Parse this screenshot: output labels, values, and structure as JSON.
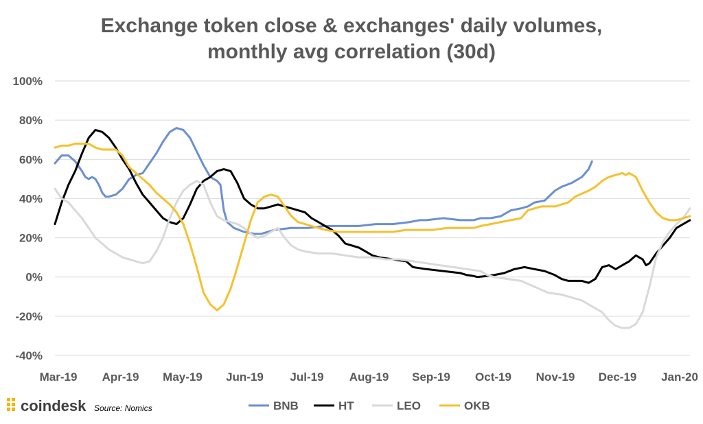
{
  "chart_data": {
    "type": "line",
    "title_lines": [
      "Exchange token close & exchanges' daily volumes,",
      "monthly avg correlation (30d)"
    ],
    "xlabel": "",
    "ylabel": "",
    "x_ticks": [
      "Mar-19",
      "Apr-19",
      "May-19",
      "Jun-19",
      "Jul-19",
      "Aug-19",
      "Sep-19",
      "Oct-19",
      "Nov-19",
      "Dec-19",
      "Jan-20"
    ],
    "ylim": [
      -40,
      100
    ],
    "y_ticks": [
      -40,
      -20,
      0,
      20,
      40,
      60,
      80,
      100
    ],
    "y_tick_labels": [
      "-40%",
      "-20%",
      "0%",
      "20%",
      "40%",
      "60%",
      "80%",
      "100%"
    ],
    "grid": "horizontal",
    "legend_position": "bottom",
    "series": [
      {
        "name": "BNB",
        "color": "#6a8fd1",
        "points": [
          [
            0,
            58
          ],
          [
            0.2,
            62
          ],
          [
            0.4,
            62
          ],
          [
            0.6,
            59
          ],
          [
            0.8,
            54
          ],
          [
            0.9,
            51
          ],
          [
            1.0,
            50
          ],
          [
            1.1,
            51
          ],
          [
            1.2,
            50
          ],
          [
            1.3,
            47
          ],
          [
            1.4,
            43
          ],
          [
            1.5,
            41
          ],
          [
            1.6,
            41
          ],
          [
            1.8,
            42
          ],
          [
            2.0,
            45
          ],
          [
            2.2,
            50
          ],
          [
            2.4,
            52
          ],
          [
            2.6,
            53
          ],
          [
            2.8,
            58
          ],
          [
            3.0,
            63
          ],
          [
            3.2,
            69
          ],
          [
            3.4,
            74
          ],
          [
            3.6,
            76
          ],
          [
            3.8,
            75
          ],
          [
            4.0,
            71
          ],
          [
            4.2,
            64
          ],
          [
            4.4,
            57
          ],
          [
            4.6,
            51
          ],
          [
            4.8,
            49
          ],
          [
            4.9,
            47
          ],
          [
            5.0,
            34
          ],
          [
            5.1,
            28
          ],
          [
            5.3,
            25
          ],
          [
            5.6,
            23
          ],
          [
            5.9,
            22
          ],
          [
            6.1,
            22
          ],
          [
            6.3,
            23
          ],
          [
            6.5,
            24
          ],
          [
            7.0,
            25
          ],
          [
            7.5,
            25
          ],
          [
            8.0,
            26
          ],
          [
            8.5,
            26
          ],
          [
            9.0,
            26
          ],
          [
            9.5,
            27
          ],
          [
            10.0,
            27
          ],
          [
            10.5,
            28
          ],
          [
            10.8,
            29
          ],
          [
            11.0,
            29
          ],
          [
            11.5,
            30
          ],
          [
            12.0,
            29
          ],
          [
            12.4,
            29
          ],
          [
            12.6,
            30
          ],
          [
            12.9,
            30
          ],
          [
            13.2,
            31
          ],
          [
            13.5,
            34
          ],
          [
            13.8,
            35
          ],
          [
            14.0,
            36
          ],
          [
            14.2,
            38
          ],
          [
            14.5,
            39
          ],
          [
            14.8,
            44
          ],
          [
            15.0,
            46
          ],
          [
            15.3,
            48
          ],
          [
            15.6,
            51
          ],
          [
            15.8,
            55
          ],
          [
            15.9,
            59
          ]
        ]
      },
      {
        "name": "HT",
        "color": "#000000",
        "points": [
          [
            0,
            27
          ],
          [
            0.2,
            38
          ],
          [
            0.4,
            47
          ],
          [
            0.6,
            54
          ],
          [
            0.8,
            63
          ],
          [
            1.0,
            71
          ],
          [
            1.2,
            75
          ],
          [
            1.4,
            74
          ],
          [
            1.6,
            71
          ],
          [
            1.8,
            66
          ],
          [
            2.0,
            60
          ],
          [
            2.2,
            55
          ],
          [
            2.4,
            48
          ],
          [
            2.6,
            42
          ],
          [
            2.8,
            38
          ],
          [
            3.0,
            34
          ],
          [
            3.2,
            30
          ],
          [
            3.4,
            28
          ],
          [
            3.6,
            27
          ],
          [
            3.8,
            30
          ],
          [
            4.0,
            37
          ],
          [
            4.2,
            45
          ],
          [
            4.4,
            49
          ],
          [
            4.6,
            51
          ],
          [
            4.8,
            54
          ],
          [
            5.0,
            55
          ],
          [
            5.2,
            54
          ],
          [
            5.4,
            48
          ],
          [
            5.6,
            40
          ],
          [
            5.8,
            37
          ],
          [
            6.0,
            35
          ],
          [
            6.2,
            35
          ],
          [
            6.4,
            36
          ],
          [
            6.6,
            37
          ],
          [
            6.8,
            36
          ],
          [
            7.0,
            35
          ],
          [
            7.2,
            34
          ],
          [
            7.4,
            33
          ],
          [
            7.6,
            30
          ],
          [
            7.8,
            28
          ],
          [
            8.0,
            26
          ],
          [
            8.2,
            24
          ],
          [
            8.4,
            21
          ],
          [
            8.6,
            17
          ],
          [
            8.8,
            16
          ],
          [
            9.0,
            15
          ],
          [
            9.2,
            13
          ],
          [
            9.4,
            11
          ],
          [
            9.6,
            10
          ],
          [
            10.0,
            9
          ],
          [
            10.4,
            8
          ],
          [
            10.6,
            5
          ],
          [
            11.0,
            4
          ],
          [
            11.5,
            3
          ],
          [
            12.0,
            2
          ],
          [
            12.2,
            1
          ],
          [
            12.4,
            0.5
          ],
          [
            12.5,
            0
          ],
          [
            12.8,
            0.5
          ],
          [
            13.0,
            1
          ],
          [
            13.3,
            2
          ],
          [
            13.6,
            4
          ],
          [
            13.9,
            5
          ],
          [
            14.2,
            4
          ],
          [
            14.5,
            3
          ],
          [
            14.8,
            1
          ],
          [
            15.0,
            -1
          ],
          [
            15.2,
            -2
          ],
          [
            15.4,
            -2
          ],
          [
            15.6,
            -2
          ],
          [
            15.8,
            -3
          ],
          [
            16.0,
            -1
          ],
          [
            16.2,
            5
          ],
          [
            16.4,
            6
          ],
          [
            16.6,
            4
          ],
          [
            16.8,
            6
          ],
          [
            17.0,
            8
          ],
          [
            17.2,
            11
          ],
          [
            17.4,
            9
          ],
          [
            17.5,
            6
          ],
          [
            17.6,
            7
          ],
          [
            17.8,
            12
          ],
          [
            18.0,
            16
          ],
          [
            18.2,
            20
          ],
          [
            18.4,
            25
          ],
          [
            18.6,
            27
          ],
          [
            18.8,
            29
          ]
        ]
      },
      {
        "name": "LEO",
        "color": "#d9d9d9",
        "points": [
          [
            0,
            45
          ],
          [
            0.2,
            40
          ],
          [
            0.4,
            38
          ],
          [
            0.6,
            34
          ],
          [
            0.8,
            30
          ],
          [
            1.0,
            25
          ],
          [
            1.2,
            20
          ],
          [
            1.4,
            17
          ],
          [
            1.6,
            14
          ],
          [
            1.8,
            12
          ],
          [
            2.0,
            10
          ],
          [
            2.2,
            9
          ],
          [
            2.4,
            8
          ],
          [
            2.6,
            7
          ],
          [
            2.8,
            8
          ],
          [
            3.0,
            13
          ],
          [
            3.2,
            20
          ],
          [
            3.4,
            30
          ],
          [
            3.6,
            38
          ],
          [
            3.8,
            44
          ],
          [
            4.0,
            47
          ],
          [
            4.2,
            49
          ],
          [
            4.4,
            47
          ],
          [
            4.6,
            38
          ],
          [
            4.8,
            31
          ],
          [
            5.0,
            29
          ],
          [
            5.2,
            28
          ],
          [
            5.4,
            27
          ],
          [
            5.6,
            25
          ],
          [
            5.8,
            22
          ],
          [
            6.0,
            20
          ],
          [
            6.2,
            21
          ],
          [
            6.4,
            23
          ],
          [
            6.6,
            25
          ],
          [
            6.8,
            20
          ],
          [
            7.0,
            16
          ],
          [
            7.2,
            14
          ],
          [
            7.4,
            13
          ],
          [
            7.8,
            12
          ],
          [
            8.2,
            12
          ],
          [
            8.6,
            11
          ],
          [
            9.0,
            10
          ],
          [
            9.4,
            10
          ],
          [
            9.8,
            9
          ],
          [
            10.2,
            9
          ],
          [
            10.6,
            8
          ],
          [
            11.0,
            7
          ],
          [
            11.4,
            6
          ],
          [
            11.8,
            5
          ],
          [
            12.2,
            4
          ],
          [
            12.6,
            3
          ],
          [
            12.8,
            1
          ],
          [
            13.0,
            0
          ],
          [
            13.4,
            -1
          ],
          [
            13.8,
            -2
          ],
          [
            14.2,
            -5
          ],
          [
            14.6,
            -8
          ],
          [
            15.0,
            -9
          ],
          [
            15.4,
            -11
          ],
          [
            15.6,
            -12
          ],
          [
            15.8,
            -14
          ],
          [
            16.0,
            -16
          ],
          [
            16.2,
            -18
          ],
          [
            16.4,
            -22
          ],
          [
            16.6,
            -25
          ],
          [
            16.8,
            -26
          ],
          [
            17.0,
            -26
          ],
          [
            17.2,
            -24
          ],
          [
            17.4,
            -18
          ],
          [
            17.6,
            -5
          ],
          [
            17.8,
            10
          ],
          [
            18.0,
            18
          ],
          [
            18.2,
            23
          ],
          [
            18.4,
            27
          ],
          [
            18.6,
            30
          ],
          [
            18.8,
            35
          ]
        ]
      },
      {
        "name": "OKB",
        "color": "#f5c12e",
        "points": [
          [
            0,
            66
          ],
          [
            0.2,
            67
          ],
          [
            0.4,
            67
          ],
          [
            0.6,
            68
          ],
          [
            0.8,
            68
          ],
          [
            1.0,
            68
          ],
          [
            1.2,
            66
          ],
          [
            1.4,
            65
          ],
          [
            1.6,
            65
          ],
          [
            1.8,
            65
          ],
          [
            2.0,
            62
          ],
          [
            2.2,
            56
          ],
          [
            2.4,
            53
          ],
          [
            2.6,
            50
          ],
          [
            2.8,
            47
          ],
          [
            3.0,
            43
          ],
          [
            3.2,
            40
          ],
          [
            3.4,
            37
          ],
          [
            3.6,
            33
          ],
          [
            3.8,
            27
          ],
          [
            4.0,
            17
          ],
          [
            4.2,
            5
          ],
          [
            4.4,
            -8
          ],
          [
            4.6,
            -14
          ],
          [
            4.8,
            -17
          ],
          [
            5.0,
            -14
          ],
          [
            5.2,
            -6
          ],
          [
            5.4,
            5
          ],
          [
            5.6,
            17
          ],
          [
            5.8,
            29
          ],
          [
            6.0,
            38
          ],
          [
            6.2,
            41
          ],
          [
            6.4,
            42
          ],
          [
            6.6,
            41
          ],
          [
            6.8,
            36
          ],
          [
            7.0,
            31
          ],
          [
            7.2,
            28
          ],
          [
            7.4,
            27
          ],
          [
            7.6,
            26
          ],
          [
            7.8,
            25
          ],
          [
            8.0,
            24
          ],
          [
            8.4,
            23
          ],
          [
            8.8,
            23
          ],
          [
            9.2,
            23
          ],
          [
            9.6,
            23
          ],
          [
            10.0,
            23
          ],
          [
            10.4,
            24
          ],
          [
            10.8,
            24
          ],
          [
            11.2,
            24
          ],
          [
            11.6,
            25
          ],
          [
            12.0,
            25
          ],
          [
            12.4,
            25
          ],
          [
            12.6,
            26
          ],
          [
            12.9,
            27
          ],
          [
            13.2,
            28
          ],
          [
            13.5,
            29
          ],
          [
            13.8,
            30
          ],
          [
            14.0,
            34
          ],
          [
            14.4,
            36
          ],
          [
            14.8,
            36
          ],
          [
            15.2,
            38
          ],
          [
            15.4,
            41
          ],
          [
            15.8,
            44
          ],
          [
            16.0,
            46
          ],
          [
            16.2,
            49
          ],
          [
            16.4,
            51
          ],
          [
            16.6,
            52
          ],
          [
            16.8,
            53
          ],
          [
            16.9,
            52
          ],
          [
            17.0,
            53
          ],
          [
            17.2,
            51
          ],
          [
            17.4,
            44
          ],
          [
            17.6,
            38
          ],
          [
            17.8,
            33
          ],
          [
            18.0,
            30
          ],
          [
            18.2,
            29
          ],
          [
            18.4,
            29
          ],
          [
            18.6,
            30
          ],
          [
            18.8,
            31
          ]
        ]
      }
    ]
  },
  "footer": {
    "logo_text": "coindesk",
    "source": "Source: Nomics",
    "logo_color": "#f5b400"
  }
}
